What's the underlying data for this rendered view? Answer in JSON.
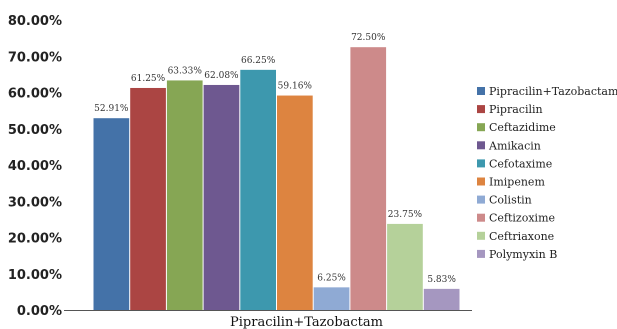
{
  "chart_data": {
    "type": "bar",
    "categories": [
      "Pipracilin+Tazobactam"
    ],
    "xlabel": "Pipracilin+Tazobactam",
    "ylabel": "",
    "ylim": [
      0,
      80
    ],
    "y_ticks": [
      "0.00%",
      "10.00%",
      "20.00%",
      "30.00%",
      "40.00%",
      "50.00%",
      "60.00%",
      "70.00%",
      "80.00%"
    ],
    "legend_position": "right",
    "grid": false,
    "series": [
      {
        "name": "Pipracilin+Tazobactam",
        "values": [
          52.91
        ],
        "label": "52.91%",
        "color": "#4472a8"
      },
      {
        "name": "Pipracilin",
        "values": [
          61.25
        ],
        "label": "61.25%",
        "color": "#ab4543"
      },
      {
        "name": "Ceftazidime",
        "values": [
          63.33
        ],
        "label": "63.33%",
        "color": "#86a654"
      },
      {
        "name": "Amikacin",
        "values": [
          62.08
        ],
        "label": "62.08%",
        "color": "#6e5890"
      },
      {
        "name": "Cefotaxime",
        "values": [
          66.25
        ],
        "label": "66.25%",
        "color": "#3d98ae"
      },
      {
        "name": "Imipenem",
        "values": [
          59.16
        ],
        "label": "59.16%",
        "color": "#dd8440"
      },
      {
        "name": "Colistin",
        "values": [
          6.25
        ],
        "label": "6.25%",
        "color": "#8faad4"
      },
      {
        "name": "Ceftizoxime",
        "values": [
          72.5
        ],
        "label": "72.50%",
        "color": "#cd8a8a"
      },
      {
        "name": "Ceftriaxone",
        "values": [
          23.75
        ],
        "label": "23.75%",
        "color": "#b5d19a"
      },
      {
        "name": "Polymyxin B",
        "values": [
          5.83
        ],
        "label": "5.83%",
        "color": "#a597c0"
      }
    ]
  }
}
